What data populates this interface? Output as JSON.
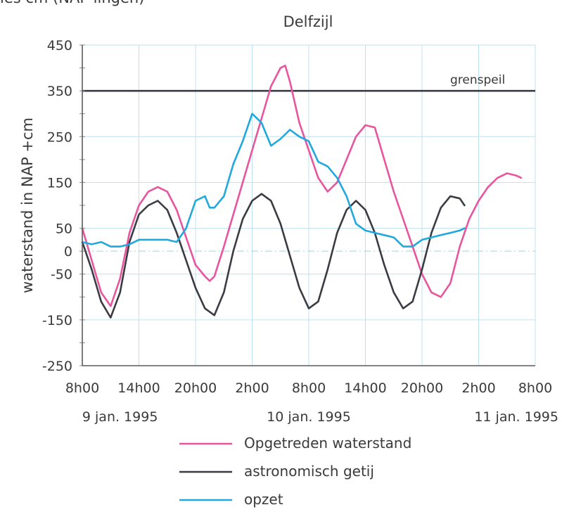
{
  "header": {
    "cut_text": "ies cm (NAP lingen)"
  },
  "chart_data": {
    "type": "line",
    "title": "Delfzijl",
    "ylabel": "waterstand in NAP +cm",
    "xlabel": "",
    "ylim": [
      -250,
      450
    ],
    "yticks": [
      450,
      350,
      250,
      150,
      50,
      0,
      -50,
      -150,
      -250
    ],
    "xlim_hours": [
      0,
      48
    ],
    "x_ticks": [
      {
        "h": 0,
        "label": "8h00"
      },
      {
        "h": 6,
        "label": "14h00"
      },
      {
        "h": 12,
        "label": "20h00"
      },
      {
        "h": 18,
        "label": "2h00"
      },
      {
        "h": 24,
        "label": "8h00"
      },
      {
        "h": 30,
        "label": "14h00"
      },
      {
        "h": 36,
        "label": "20h00"
      },
      {
        "h": 42,
        "label": "2h00"
      },
      {
        "h": 48,
        "label": "8h00"
      }
    ],
    "date_labels": [
      {
        "h": 4,
        "label": "9 jan. 1995"
      },
      {
        "h": 24,
        "label": "10 jan. 1995"
      },
      {
        "h": 46,
        "label": "11 jan. 1995"
      }
    ],
    "reference_line": {
      "label": "grenspeil",
      "value": 350
    },
    "series": [
      {
        "name": "Opgetreden waterstand",
        "color": "#e8559f",
        "points": [
          [
            0,
            50
          ],
          [
            1,
            -20
          ],
          [
            2,
            -90
          ],
          [
            3,
            -120
          ],
          [
            4,
            -60
          ],
          [
            5,
            40
          ],
          [
            6,
            100
          ],
          [
            7,
            130
          ],
          [
            8,
            140
          ],
          [
            9,
            130
          ],
          [
            10,
            90
          ],
          [
            11,
            30
          ],
          [
            12,
            -30
          ],
          [
            13,
            -55
          ],
          [
            13.5,
            -65
          ],
          [
            14,
            -55
          ],
          [
            15,
            10
          ],
          [
            16,
            80
          ],
          [
            17,
            150
          ],
          [
            18,
            220
          ],
          [
            19,
            290
          ],
          [
            20,
            360
          ],
          [
            21,
            400
          ],
          [
            21.5,
            405
          ],
          [
            22,
            370
          ],
          [
            23,
            280
          ],
          [
            24,
            220
          ],
          [
            25,
            160
          ],
          [
            26,
            130
          ],
          [
            27,
            150
          ],
          [
            28,
            200
          ],
          [
            29,
            250
          ],
          [
            30,
            275
          ],
          [
            31,
            270
          ],
          [
            32,
            200
          ],
          [
            33,
            130
          ],
          [
            34,
            70
          ],
          [
            35,
            10
          ],
          [
            36,
            -50
          ],
          [
            37,
            -90
          ],
          [
            38,
            -100
          ],
          [
            39,
            -70
          ],
          [
            40,
            10
          ],
          [
            41,
            70
          ],
          [
            42,
            110
          ],
          [
            43,
            140
          ],
          [
            44,
            160
          ],
          [
            45,
            170
          ],
          [
            46,
            165
          ],
          [
            46.5,
            160
          ]
        ]
      },
      {
        "name": "astronomisch getij",
        "color": "#3b3b43",
        "points": [
          [
            0,
            20
          ],
          [
            1,
            -40
          ],
          [
            2,
            -110
          ],
          [
            3,
            -145
          ],
          [
            4,
            -90
          ],
          [
            5,
            20
          ],
          [
            6,
            80
          ],
          [
            7,
            100
          ],
          [
            8,
            110
          ],
          [
            9,
            90
          ],
          [
            10,
            40
          ],
          [
            11,
            -20
          ],
          [
            12,
            -80
          ],
          [
            13,
            -125
          ],
          [
            14,
            -140
          ],
          [
            15,
            -90
          ],
          [
            16,
            0
          ],
          [
            17,
            70
          ],
          [
            18,
            110
          ],
          [
            19,
            125
          ],
          [
            20,
            110
          ],
          [
            21,
            60
          ],
          [
            22,
            -10
          ],
          [
            23,
            -80
          ],
          [
            24,
            -125
          ],
          [
            25,
            -110
          ],
          [
            26,
            -40
          ],
          [
            27,
            40
          ],
          [
            28,
            90
          ],
          [
            29,
            110
          ],
          [
            30,
            90
          ],
          [
            31,
            40
          ],
          [
            32,
            -30
          ],
          [
            33,
            -90
          ],
          [
            34,
            -125
          ],
          [
            35,
            -110
          ],
          [
            36,
            -40
          ],
          [
            37,
            40
          ],
          [
            38,
            95
          ],
          [
            39,
            120
          ],
          [
            40,
            115
          ],
          [
            40.5,
            100
          ]
        ]
      },
      {
        "name": "opzet",
        "color": "#21a8dc",
        "points": [
          [
            0,
            20
          ],
          [
            1,
            15
          ],
          [
            2,
            20
          ],
          [
            3,
            10
          ],
          [
            4,
            10
          ],
          [
            5,
            15
          ],
          [
            6,
            25
          ],
          [
            7,
            25
          ],
          [
            8,
            25
          ],
          [
            9,
            25
          ],
          [
            10,
            20
          ],
          [
            11,
            50
          ],
          [
            12,
            110
          ],
          [
            13,
            120
          ],
          [
            13.5,
            95
          ],
          [
            14,
            95
          ],
          [
            15,
            120
          ],
          [
            16,
            190
          ],
          [
            17,
            240
          ],
          [
            18,
            300
          ],
          [
            19,
            280
          ],
          [
            20,
            230
          ],
          [
            21,
            245
          ],
          [
            22,
            265
          ],
          [
            23,
            250
          ],
          [
            24,
            240
          ],
          [
            25,
            195
          ],
          [
            26,
            185
          ],
          [
            27,
            160
          ],
          [
            28,
            120
          ],
          [
            29,
            60
          ],
          [
            30,
            45
          ],
          [
            31,
            40
          ],
          [
            32,
            35
          ],
          [
            33,
            30
          ],
          [
            34,
            10
          ],
          [
            35,
            10
          ],
          [
            36,
            25
          ],
          [
            37,
            30
          ],
          [
            38,
            35
          ],
          [
            39,
            40
          ],
          [
            40,
            45
          ],
          [
            40.5,
            50
          ]
        ]
      }
    ],
    "legend": {
      "position": "bottom"
    }
  }
}
